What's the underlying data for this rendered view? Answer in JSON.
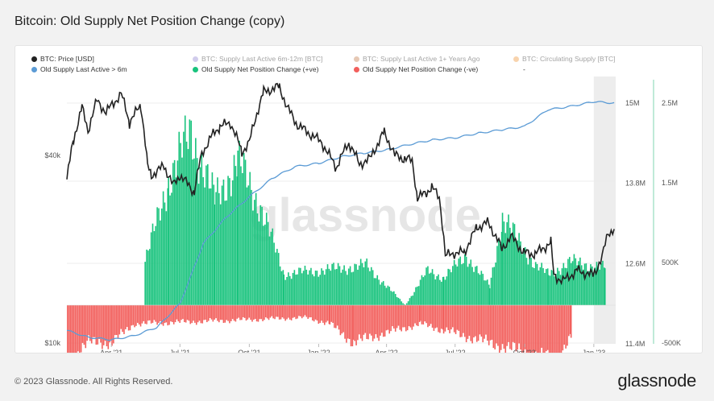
{
  "title": "Bitcoin: Old Supply Net Position Change (copy)",
  "footer": "© 2023 Glassnode. All Rights Reserved.",
  "logo": "glassnode",
  "watermark": "glassnode",
  "colors": {
    "price": "#222222",
    "supply_6m": "#5b9bd5",
    "positive": "#19c37d",
    "negative": "#f25f5c",
    "faded_purple": "#9b8fd6",
    "faded_brown": "#c8875a",
    "faded_orange": "#f0a04b",
    "axis_teal": "#7fd6b0"
  },
  "legend": [
    {
      "label": "BTC: Price [USD]",
      "color": "#222222",
      "faded": false
    },
    {
      "label": "BTC: Supply Last Active 6m-12m [BTC]",
      "color": "#9b8fd6",
      "faded": true
    },
    {
      "label": "BTC: Supply Last Active 1+ Years Ago",
      "color": "#c8875a",
      "faded": true
    },
    {
      "label": "BTC: Circulating Supply [BTC]",
      "color": "#f0a04b",
      "faded": true
    },
    {
      "label": "Old Supply Last Active > 6m",
      "color": "#5b9bd5",
      "faded": false
    },
    {
      "label": "Old Supply Net Position Change (+ve)",
      "color": "#19c37d",
      "faded": false
    },
    {
      "label": "Old Supply Net Position Change (-ve)",
      "color": "#f25f5c",
      "faded": false
    },
    {
      "label": "-",
      "color": "#999999",
      "faded": false
    }
  ],
  "chart_data": {
    "type": "line",
    "x_ticks": [
      "Apr '21",
      "Jul '21",
      "Oct '21",
      "Jan '22",
      "Apr '22",
      "Jul '22",
      "Oct '22",
      "Jan '23"
    ],
    "y_left": {
      "type": "log",
      "ticks": [
        "$40k",
        "$10k"
      ]
    },
    "y_mid": {
      "ticks": [
        "15M",
        "13.8M",
        "12.6M",
        "11.4M"
      ],
      "range": [
        11400000,
        15300000
      ]
    },
    "y_right": {
      "ticks": [
        "2.5M",
        "1.5M",
        "500K",
        "-500K"
      ],
      "range": [
        -500000,
        2500000
      ]
    },
    "series": [
      {
        "name": "BTC: Price [USD]",
        "axis": "left",
        "x": [
          "2021-02-01",
          "2021-02-10",
          "2021-02-21",
          "2021-03-01",
          "2021-03-13",
          "2021-03-25",
          "2021-04-14",
          "2021-04-25",
          "2021-05-10",
          "2021-05-19",
          "2021-05-24",
          "2021-06-10",
          "2021-06-22",
          "2021-07-01",
          "2021-07-20",
          "2021-07-30",
          "2021-08-14",
          "2021-08-23",
          "2021-09-06",
          "2021-09-21",
          "2021-10-01",
          "2021-10-20",
          "2021-11-10",
          "2021-11-20",
          "2021-12-04",
          "2021-12-20",
          "2022-01-05",
          "2022-01-24",
          "2022-02-10",
          "2022-02-24",
          "2022-03-10",
          "2022-03-29",
          "2022-04-12",
          "2022-04-25",
          "2022-05-05",
          "2022-05-12",
          "2022-05-31",
          "2022-06-10",
          "2022-06-18",
          "2022-06-30",
          "2022-07-13",
          "2022-07-30",
          "2022-08-14",
          "2022-09-01",
          "2022-09-13",
          "2022-09-30",
          "2022-10-15",
          "2022-11-05",
          "2022-11-09",
          "2022-11-21",
          "2022-12-10",
          "2022-12-31",
          "2023-01-12",
          "2023-01-20",
          "2023-01-28"
        ],
        "values": [
          33500,
          45000,
          57000,
          48000,
          60000,
          55000,
          63000,
          51000,
          58000,
          37000,
          34500,
          37000,
          32000,
          34500,
          30500,
          40500,
          47000,
          49500,
          51000,
          41000,
          44000,
          64000,
          66500,
          57000,
          50000,
          47000,
          44000,
          36500,
          44000,
          37500,
          39000,
          47500,
          40000,
          39000,
          38500,
          29000,
          31500,
          29500,
          19000,
          19500,
          19500,
          23500,
          24400,
          20000,
          22000,
          19500,
          19300,
          21000,
          16500,
          15800,
          17100,
          16500,
          18800,
          22600,
          23200
        ]
      },
      {
        "name": "Old Supply Last Active > 6m",
        "axis": "mid",
        "x": [
          "2021-02-01",
          "2021-03-01",
          "2021-04-01",
          "2021-05-01",
          "2021-06-01",
          "2021-07-01",
          "2021-07-15",
          "2021-08-01",
          "2021-09-01",
          "2021-10-01",
          "2021-11-01",
          "2021-12-01",
          "2022-01-01",
          "2022-02-01",
          "2022-03-01",
          "2022-04-01",
          "2022-05-01",
          "2022-06-01",
          "2022-07-01",
          "2022-08-01",
          "2022-09-01",
          "2022-10-01",
          "2022-11-01",
          "2022-12-01",
          "2023-01-01",
          "2023-01-28"
        ],
        "values": [
          11600000,
          11500000,
          11460000,
          11520000,
          11650000,
          12000000,
          12400000,
          12900000,
          13300000,
          13600000,
          13880000,
          14050000,
          14100000,
          14200000,
          14250000,
          14300000,
          14380000,
          14450000,
          14480000,
          14550000,
          14600000,
          14650000,
          14900000,
          14950000,
          15020000,
          15000000
        ]
      },
      {
        "name": "Old Supply Net Position Change (+ve)",
        "axis": "right",
        "x": [
          "2021-05-15",
          "2021-06-15",
          "2021-07-15",
          "2021-08-15",
          "2021-09-15",
          "2021-10-15",
          "2021-11-15",
          "2022-03-05",
          "2022-04-25",
          "2022-05-25",
          "2022-06-15",
          "2022-07-15",
          "2022-08-15",
          "2022-09-01",
          "2022-10-15",
          "2022-11-01",
          "2022-12-01",
          "2023-01-15"
        ],
        "values": [
          350000,
          1000000,
          1400000,
          850000,
          1150000,
          800000,
          250000,
          320000,
          0,
          280000,
          220000,
          400000,
          150000,
          700000,
          320000,
          250000,
          350000,
          300000
        ]
      },
      {
        "name": "Old Supply Net Position Change (-ve)",
        "axis": "right",
        "x": [
          "2021-02-01",
          "2021-03-01",
          "2021-04-01",
          "2021-05-01",
          "2021-12-15",
          "2022-01-15",
          "2022-02-15",
          "2022-03-15",
          "2022-05-15",
          "2022-06-15",
          "2022-11-10",
          "2022-12-01"
        ],
        "values": [
          -450000,
          -300000,
          -300000,
          -150000,
          -100000,
          -150000,
          -300000,
          -250000,
          -150000,
          -200000,
          -450000,
          -250000
        ]
      }
    ],
    "grid": true,
    "legend_position": "top"
  }
}
